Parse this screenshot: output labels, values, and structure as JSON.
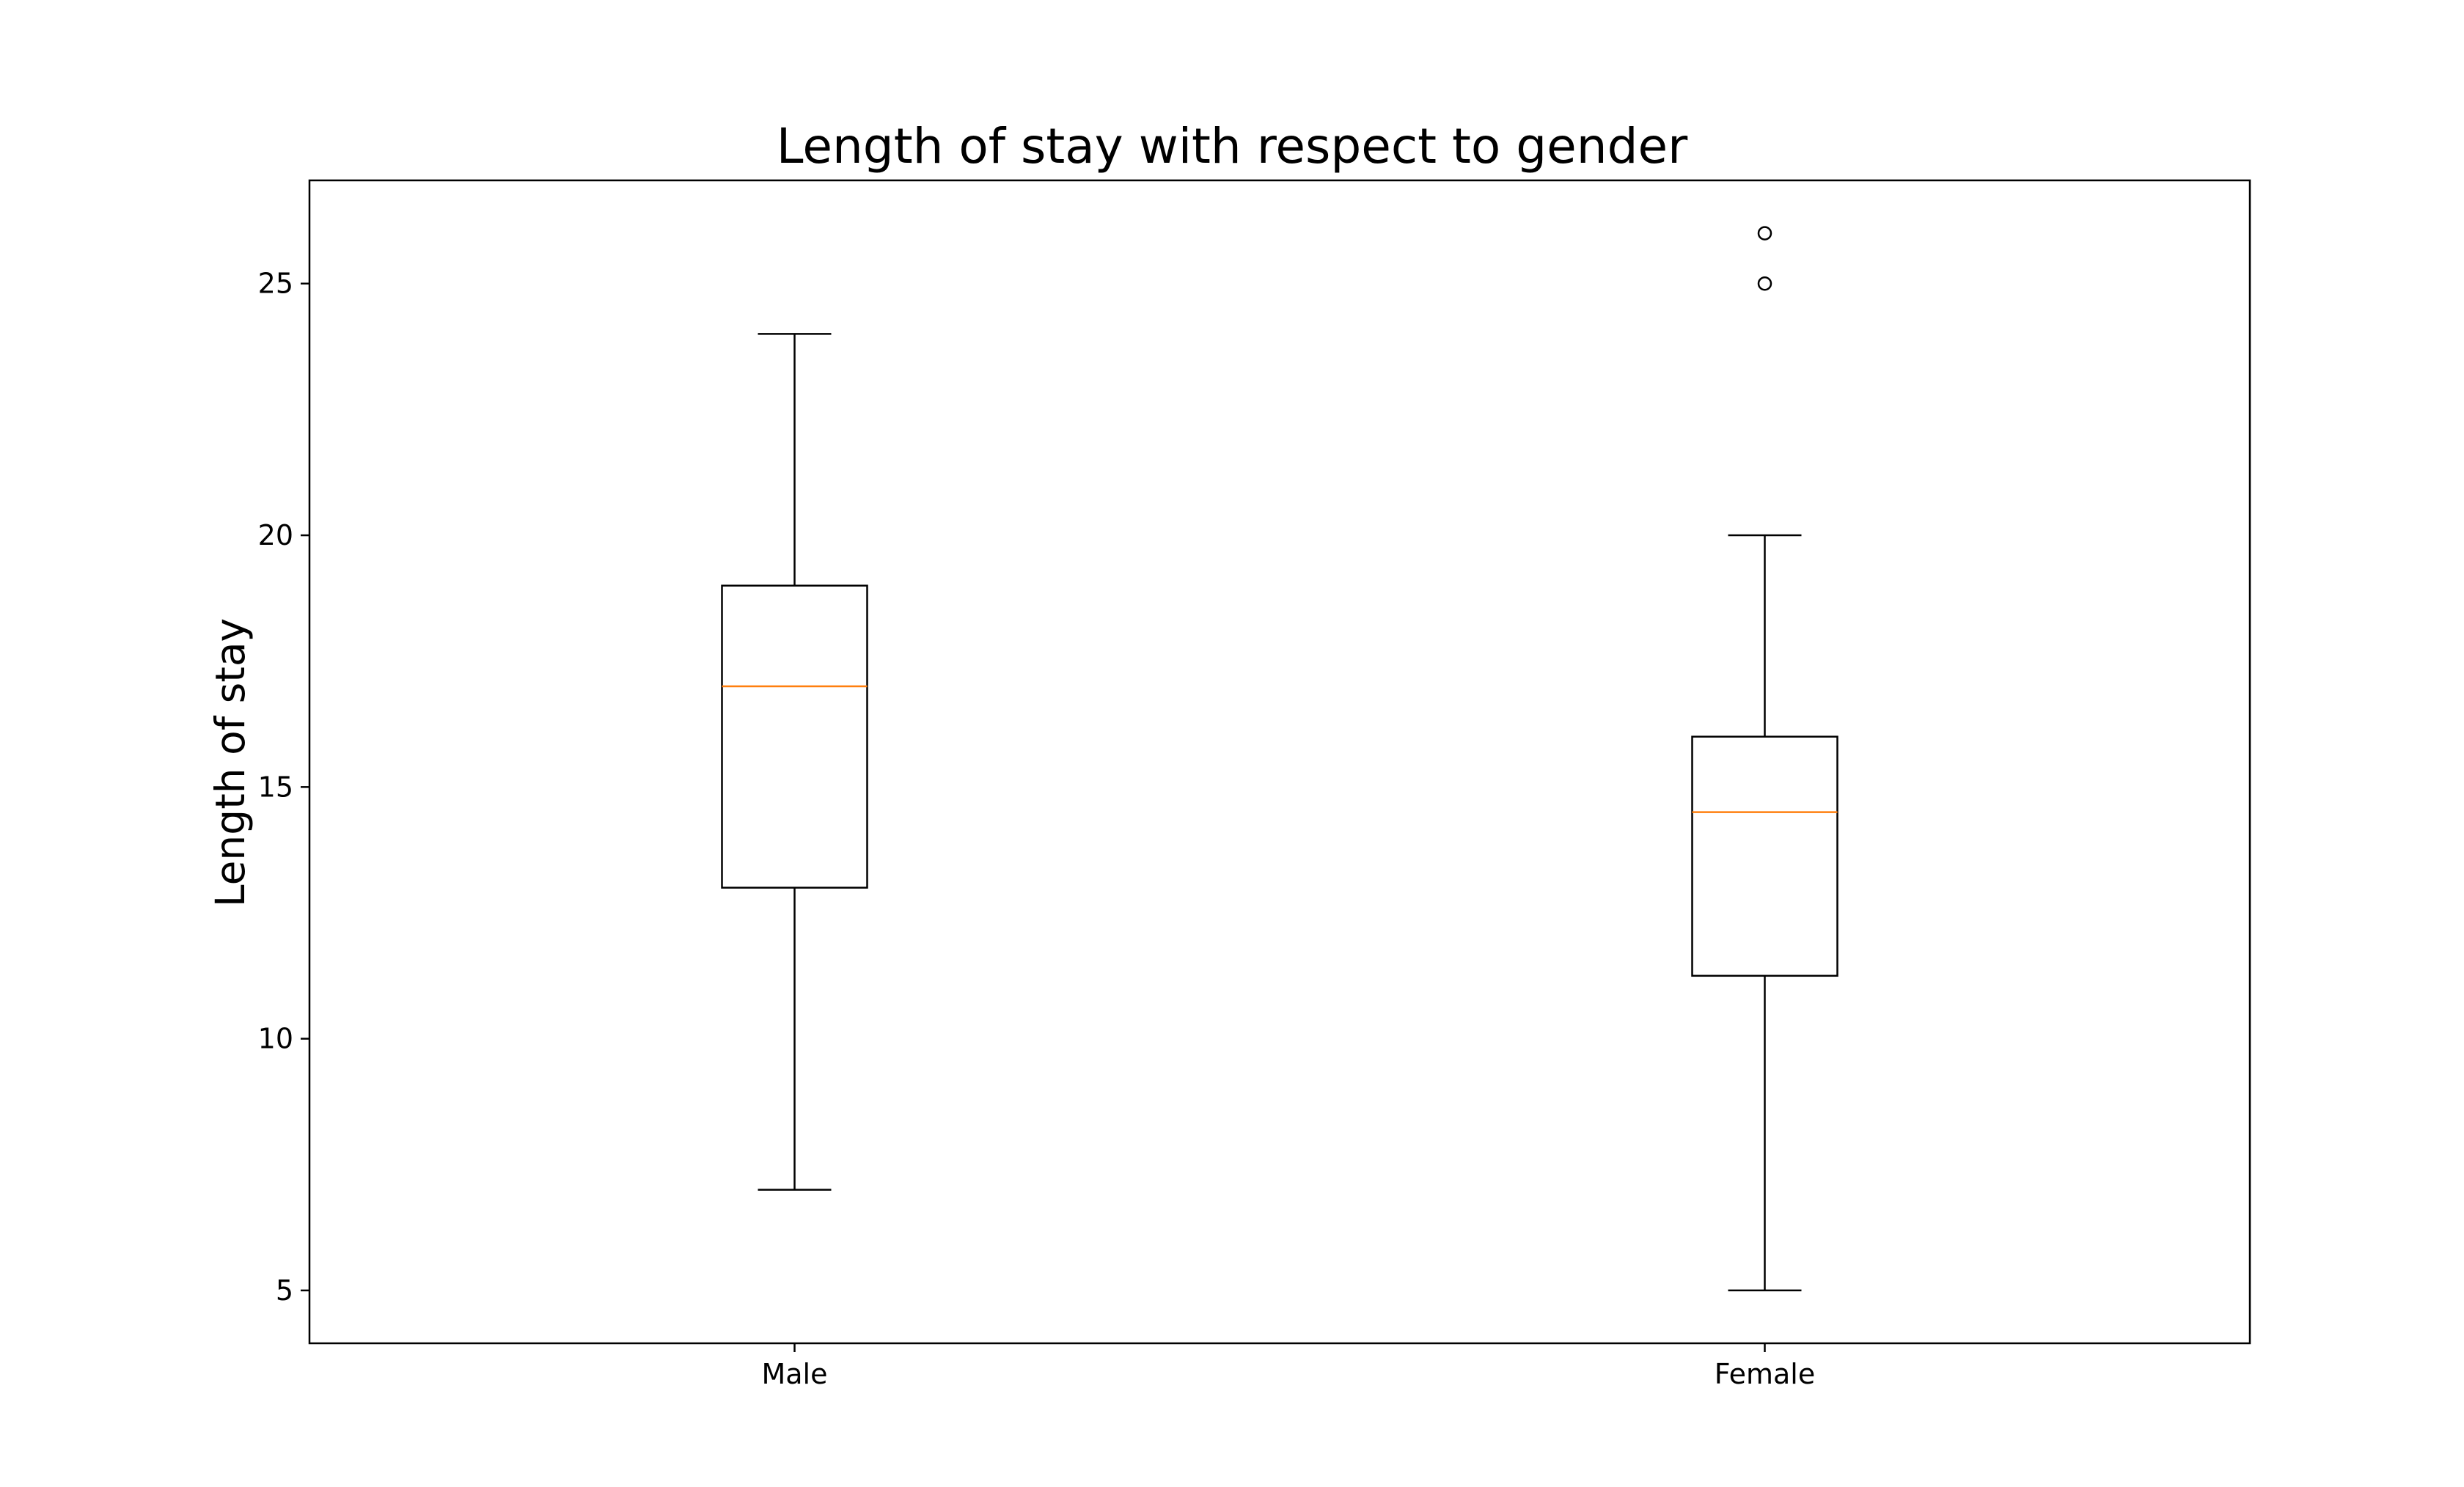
{
  "chart_data": {
    "type": "boxplot",
    "title": "Length of stay with respect to gender",
    "xlabel": "",
    "ylabel": "Length of stay",
    "ylim": [
      3.95,
      27.05
    ],
    "yticks": [
      5,
      10,
      15,
      20,
      25
    ],
    "grid": false,
    "categories": [
      "Male",
      "Female"
    ],
    "boxes": [
      {
        "name": "Male",
        "whisker_low": 7,
        "q1": 13,
        "median": 17,
        "q3": 19,
        "whisker_high": 24,
        "outliers": []
      },
      {
        "name": "Female",
        "whisker_low": 5,
        "q1": 11.25,
        "median": 14.5,
        "q3": 16,
        "whisker_high": 20,
        "outliers": [
          25,
          26
        ]
      }
    ],
    "colors": {
      "box": "#000000",
      "median": "#ff7f0e",
      "background": "#ffffff"
    }
  }
}
